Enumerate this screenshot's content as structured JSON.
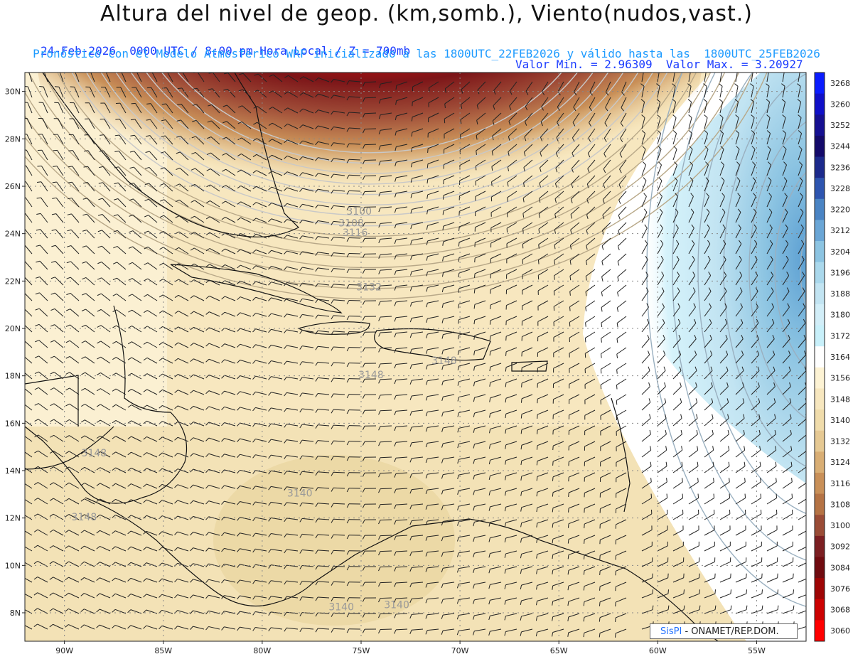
{
  "header": {
    "title": "Altura del nivel de geop. (km,somb.), Viento(nudos,vast.)",
    "info_left": "24-Feb-2026  0000 UTC / 8:00 pm Hora Local / Z = 700mb",
    "info_right": "Valor Min. = 2.96309  Valor Max. = 3.20927",
    "info_line": "Pronóstico con el Modelo Atmosferico WRF inicializado a las 1800UTC_22FEB2026 y válido hasta las  1800UTC_25FEB2026"
  },
  "map": {
    "lat_labels": [
      "30N",
      "28N",
      "26N",
      "24N",
      "22N",
      "20N",
      "18N",
      "16N",
      "14N",
      "12N",
      "10N",
      "8N"
    ],
    "lon_labels": [
      "90W",
      "85W",
      "80W",
      "75W",
      "70W",
      "65W",
      "60W",
      "55W"
    ],
    "lat_values": [
      30,
      28,
      26,
      24,
      22,
      20,
      18,
      16,
      14,
      12,
      10,
      8
    ],
    "lon_values": [
      -90,
      -85,
      -80,
      -75,
      -70,
      -65,
      -60,
      -55
    ],
    "contour_labels": [
      {
        "text": "3100",
        "lon": -75.1,
        "lat": 24.8
      },
      {
        "text": "3108",
        "lon": -75.5,
        "lat": 24.3
      },
      {
        "text": "3116",
        "lon": -75.3,
        "lat": 23.9
      },
      {
        "text": "3132",
        "lon": -74.6,
        "lat": 21.6
      },
      {
        "text": "3148",
        "lon": -70.8,
        "lat": 18.5
      },
      {
        "text": "3148",
        "lon": -74.5,
        "lat": 17.9
      },
      {
        "text": "3148",
        "lon": -88.5,
        "lat": 14.6
      },
      {
        "text": "3140",
        "lon": -78.1,
        "lat": 12.9
      },
      {
        "text": "3148",
        "lon": -89.0,
        "lat": 11.9
      },
      {
        "text": "3140",
        "lon": -73.2,
        "lat": 8.2
      },
      {
        "text": "3140",
        "lon": -76.0,
        "lat": 8.1
      }
    ]
  },
  "colorbar": {
    "labels": [
      "3268",
      "3260",
      "3252",
      "3244",
      "3236",
      "3228",
      "3220",
      "3212",
      "3204",
      "3196",
      "3188",
      "3180",
      "3172",
      "3164",
      "3156",
      "3148",
      "3140",
      "3132",
      "3124",
      "3116",
      "3108",
      "3100",
      "3092",
      "3084",
      "3076",
      "3068",
      "3060"
    ],
    "colors": [
      "#0a1cff",
      "#1010c8",
      "#161092",
      "#140a6a",
      "#1c2a8c",
      "#2e55b0",
      "#4a84c4",
      "#6aa6d6",
      "#8cc4e2",
      "#aad8ec",
      "#c2e4f2",
      "#d2eef8",
      "#c8f0fa",
      "#ffffff",
      "#fdf3d4",
      "#f7e7bf",
      "#f0dcab",
      "#e6c993",
      "#d9ae74",
      "#c99058",
      "#b57344",
      "#9a4c36",
      "#7c1f22",
      "#700b10",
      "#9e0505",
      "#cc0202",
      "#ff0000"
    ]
  },
  "credit": {
    "brand": "SisPI",
    "text": " - ONAMET/REP.DOM."
  }
}
